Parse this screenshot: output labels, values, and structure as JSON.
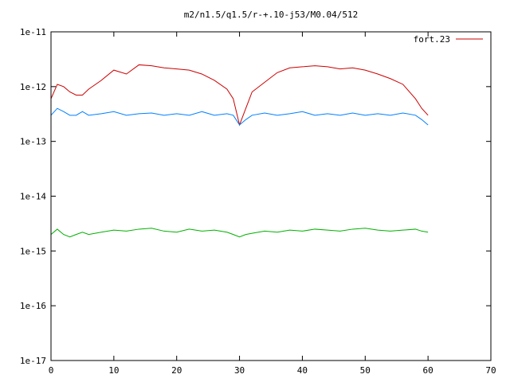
{
  "chart_data": {
    "type": "line",
    "title": "m2/n1.5/q1.5/r-+.10-j53/M0.04/512",
    "xlabel": "",
    "ylabel": "",
    "xlim": [
      0,
      70
    ],
    "ylim": [
      1e-17,
      1e-11
    ],
    "y_scale": "log",
    "grid": false,
    "legend_position": "top-right",
    "x_ticks": [
      "0",
      "10",
      "20",
      "30",
      "40",
      "50",
      "60",
      "70"
    ],
    "y_ticks": [
      "1e-11",
      "1e-12",
      "1e-13",
      "1e-14",
      "1e-15",
      "1e-16",
      "1e-17"
    ],
    "series": [
      {
        "name": "fort.23",
        "color": "#cc0000",
        "x": [
          0,
          1,
          2,
          3,
          4,
          5,
          6,
          8,
          10,
          12,
          14,
          16,
          18,
          20,
          22,
          24,
          26,
          28,
          29,
          30,
          31,
          32,
          34,
          36,
          38,
          40,
          42,
          44,
          46,
          48,
          50,
          52,
          54,
          56,
          58,
          59,
          60
        ],
        "y": [
          6e-13,
          1.1e-12,
          1e-12,
          8e-13,
          7e-13,
          7e-13,
          9e-13,
          1.3e-12,
          2e-12,
          1.7e-12,
          2.5e-12,
          2.4e-12,
          2.2e-12,
          2.1e-12,
          2e-12,
          1.7e-12,
          1.3e-12,
          9e-13,
          6e-13,
          2e-13,
          4e-13,
          8e-13,
          1.2e-12,
          1.8e-12,
          2.2e-12,
          2.3e-12,
          2.4e-12,
          2.3e-12,
          2.1e-12,
          2.2e-12,
          2e-12,
          1.7e-12,
          1.4e-12,
          1.1e-12,
          6e-13,
          4e-13,
          3e-13
        ]
      },
      {
        "name": "",
        "color": "#0080ff",
        "x": [
          0,
          1,
          2,
          3,
          4,
          5,
          6,
          8,
          10,
          12,
          14,
          16,
          18,
          20,
          22,
          24,
          26,
          28,
          29,
          30,
          31,
          32,
          34,
          36,
          38,
          40,
          42,
          44,
          46,
          48,
          50,
          52,
          54,
          56,
          58,
          59,
          60
        ],
        "y": [
          3e-13,
          4e-13,
          3.5e-13,
          3e-13,
          3e-13,
          3.5e-13,
          3e-13,
          3.2e-13,
          3.5e-13,
          3e-13,
          3.2e-13,
          3.3e-13,
          3e-13,
          3.2e-13,
          3e-13,
          3.5e-13,
          3e-13,
          3.2e-13,
          3e-13,
          2e-13,
          2.5e-13,
          3e-13,
          3.3e-13,
          3e-13,
          3.2e-13,
          3.5e-13,
          3e-13,
          3.2e-13,
          3e-13,
          3.3e-13,
          3e-13,
          3.2e-13,
          3e-13,
          3.3e-13,
          3e-13,
          2.5e-13,
          2e-13
        ]
      },
      {
        "name": "",
        "color": "#00b000",
        "x": [
          0,
          1,
          2,
          3,
          4,
          5,
          6,
          8,
          10,
          12,
          14,
          16,
          18,
          20,
          22,
          24,
          26,
          28,
          29,
          30,
          31,
          32,
          34,
          36,
          38,
          40,
          42,
          44,
          46,
          48,
          50,
          52,
          54,
          56,
          58,
          59,
          60
        ],
        "y": [
          2e-15,
          2.5e-15,
          2e-15,
          1.8e-15,
          2e-15,
          2.2e-15,
          2e-15,
          2.2e-15,
          2.4e-15,
          2.3e-15,
          2.5e-15,
          2.6e-15,
          2.3e-15,
          2.2e-15,
          2.5e-15,
          2.3e-15,
          2.4e-15,
          2.2e-15,
          2e-15,
          1.8e-15,
          2e-15,
          2.1e-15,
          2.3e-15,
          2.2e-15,
          2.4e-15,
          2.3e-15,
          2.5e-15,
          2.4e-15,
          2.3e-15,
          2.5e-15,
          2.6e-15,
          2.4e-15,
          2.3e-15,
          2.4e-15,
          2.5e-15,
          2.3e-15,
          2.2e-15
        ]
      }
    ]
  }
}
